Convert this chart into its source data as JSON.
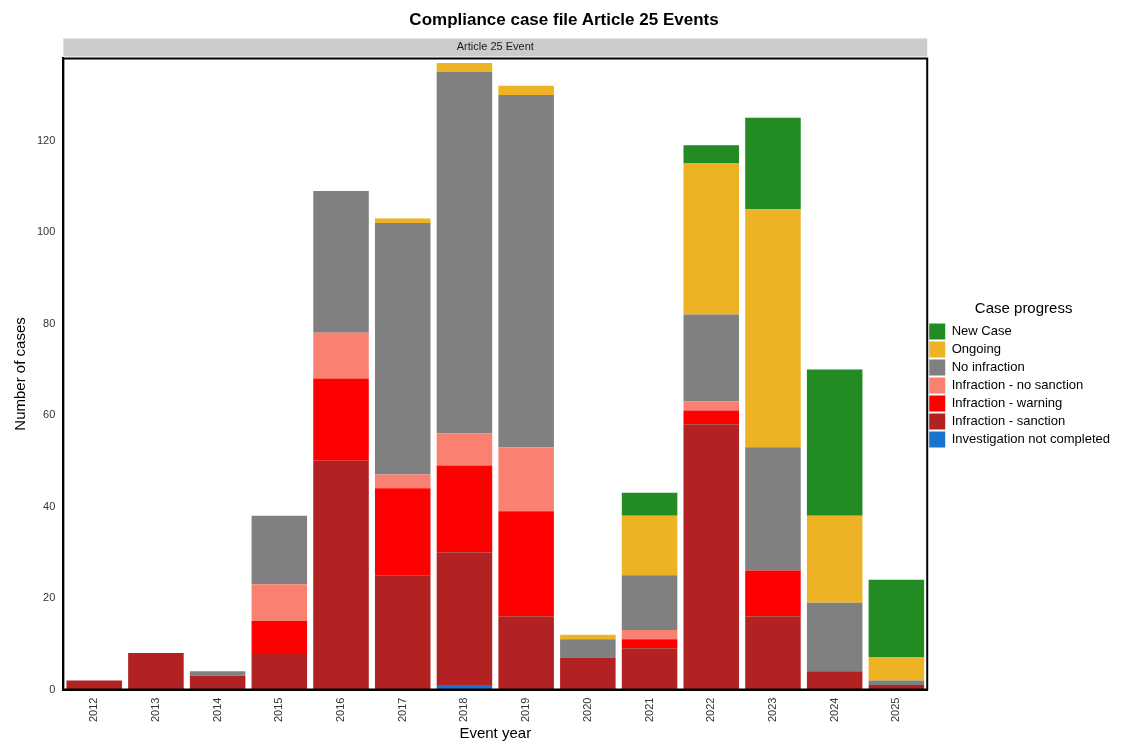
{
  "chart_data": {
    "type": "bar",
    "title": "Compliance case file Article 25 Events",
    "subtitle": "Article 25 Event",
    "xlabel": "Event year",
    "ylabel": "Number of cases",
    "legend_title": "Case progress",
    "categories": [
      "2012",
      "2013",
      "2014",
      "2015",
      "2016",
      "2017",
      "2018",
      "2019",
      "2020",
      "2021",
      "2022",
      "2023",
      "2024",
      "2025"
    ],
    "stacked": true,
    "ylim": [
      0,
      138
    ],
    "yticks": [
      0,
      20,
      40,
      60,
      80,
      100,
      120
    ],
    "grid": false,
    "legend": "right",
    "series": [
      {
        "name": "Investigation not completed",
        "color": "#1874cd",
        "values": [
          0,
          0,
          0,
          0,
          0,
          0,
          1,
          0,
          0,
          0,
          0,
          0,
          0,
          0
        ]
      },
      {
        "name": "Infraction - sanction",
        "color": "#b22222",
        "values": [
          2,
          8,
          3,
          8,
          50,
          25,
          29,
          16,
          7,
          9,
          58,
          16,
          4,
          1
        ]
      },
      {
        "name": "Infraction - warning",
        "color": "#ff0000",
        "values": [
          0,
          0,
          0,
          7,
          18,
          19,
          19,
          23,
          0,
          2,
          3,
          10,
          0,
          0
        ]
      },
      {
        "name": "Infraction - no sanction",
        "color": "#fa8072",
        "values": [
          0,
          0,
          0,
          8,
          10,
          3,
          7,
          14,
          0,
          2,
          2,
          0,
          0,
          0
        ]
      },
      {
        "name": "No infraction",
        "color": "#808080",
        "values": [
          0,
          0,
          1,
          15,
          31,
          55,
          79,
          77,
          4,
          12,
          19,
          27,
          15,
          1
        ]
      },
      {
        "name": "Ongoing",
        "color": "#edb325",
        "values": [
          0,
          0,
          0,
          0,
          0,
          1,
          2,
          2,
          1,
          13,
          33,
          52,
          19,
          5
        ]
      },
      {
        "name": "New Case",
        "color": "#228b22",
        "values": [
          0,
          0,
          0,
          0,
          0,
          0,
          0,
          0,
          0,
          5,
          4,
          20,
          32,
          17
        ]
      }
    ]
  }
}
